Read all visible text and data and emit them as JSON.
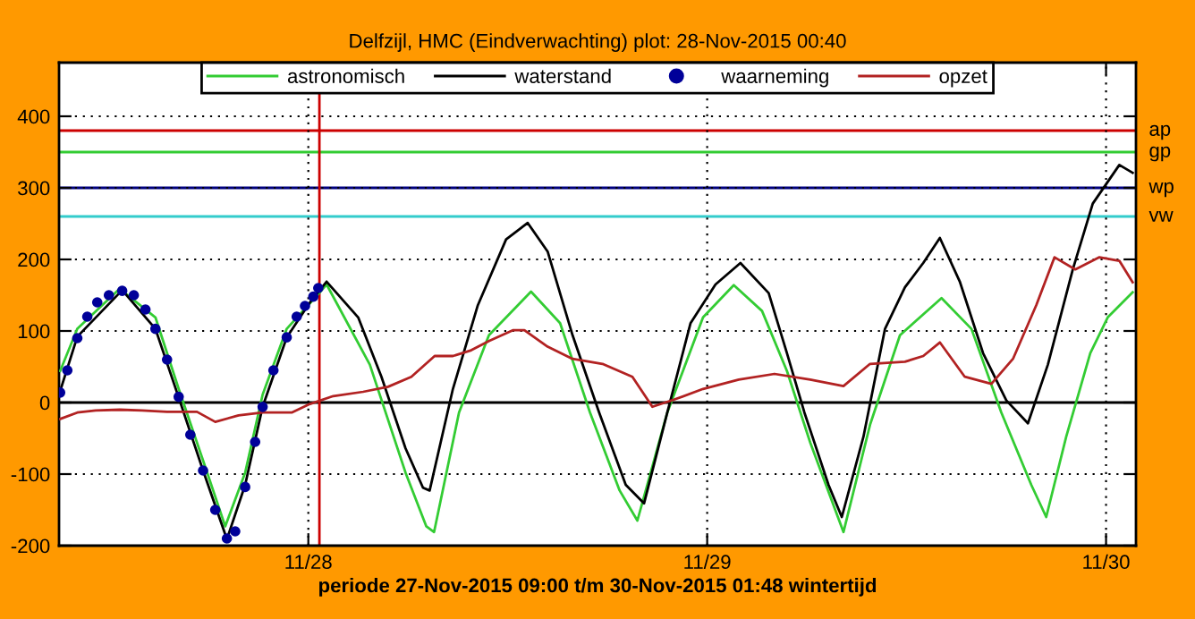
{
  "chart_data": {
    "type": "line",
    "title": "Delfzijl, HMC (Eindverwachting) plot: 28-Nov-2015 00:40",
    "xlabel": "periode 27-Nov-2015 09:00 t/m 30-Nov-2015 01:48 wintertijd",
    "xlim": [
      "2015-11-27T09:00",
      "2015-11-30T01:48"
    ],
    "xticks": [
      {
        "value": "2015-11-28",
        "label": "11/28"
      },
      {
        "value": "2015-11-29",
        "label": "11/29"
      },
      {
        "value": "2015-11-30",
        "label": "11/30"
      }
    ],
    "ylim": [
      -200,
      475
    ],
    "yticks": [
      -200,
      -100,
      0,
      100,
      200,
      300,
      400
    ],
    "grid": true,
    "legend": "top",
    "series": [
      {
        "name": "astronomisch",
        "color": "#33cc33",
        "x": [
          "2015-11-27T09:04",
          "2015-11-27T10:06",
          "2015-11-27T12:39",
          "2015-11-27T14:48",
          "2015-11-27T16:12",
          "2015-11-27T17:40",
          "2015-11-27T19:00",
          "2015-11-27T20:12",
          "2015-11-27T21:15",
          "2015-11-27T22:42",
          "2015-11-28T00:30",
          "2015-11-28T01:06",
          "2015-11-28T03:42",
          "2015-11-28T05:51",
          "2015-11-28T07:06",
          "2015-11-28T07:34",
          "2015-11-28T09:04",
          "2015-11-28T10:52",
          "2015-11-28T13:24",
          "2015-11-28T15:09",
          "2015-11-28T16:57",
          "2015-11-28T18:44",
          "2015-11-28T19:48",
          "2015-11-28T21:36",
          "2015-11-28T23:45",
          "2015-11-29T01:36",
          "2015-11-29T03:18",
          "2015-11-29T04:48",
          "2015-11-29T06:12",
          "2015-11-29T08:12",
          "2015-11-29T09:48",
          "2015-11-29T11:36",
          "2015-11-29T14:06",
          "2015-11-29T15:54",
          "2015-11-29T17:42",
          "2015-11-29T19:30",
          "2015-11-29T20:24",
          "2015-11-29T21:36",
          "2015-11-29T23:03",
          "2015-11-30T00:06",
          "2015-11-30T01:36"
        ],
        "values": [
          44,
          103,
          159,
          119,
          19,
          -81,
          -173,
          -98,
          11,
          103,
          149,
          165,
          53,
          -98,
          -173,
          -181,
          -14,
          94,
          155,
          111,
          -14,
          -123,
          -165,
          -14,
          119,
          164,
          128,
          44,
          -56,
          -181,
          -31,
          94,
          146,
          103,
          -14,
          -115,
          -160,
          -48,
          69,
          119,
          154
        ]
      },
      {
        "name": "waterstand",
        "color": "#000000",
        "x": [
          "2015-11-27T09:04",
          "2015-11-27T10:06",
          "2015-11-27T12:48",
          "2015-11-27T14:48",
          "2015-11-27T16:12",
          "2015-11-27T17:40",
          "2015-11-27T19:06",
          "2015-11-27T20:12",
          "2015-11-27T21:15",
          "2015-11-27T22:42",
          "2015-11-28T00:06",
          "2015-11-28T01:06",
          "2015-11-28T03:00",
          "2015-11-28T04:24",
          "2015-11-28T05:51",
          "2015-11-28T06:54",
          "2015-11-28T07:18",
          "2015-11-28T08:42",
          "2015-11-28T10:12",
          "2015-11-28T11:54",
          "2015-11-28T13:12",
          "2015-11-28T14:24",
          "2015-11-28T15:54",
          "2015-11-28T17:30",
          "2015-11-28T19:06",
          "2015-11-28T20:12",
          "2015-11-28T21:36",
          "2015-11-28T23:00",
          "2015-11-29T00:30",
          "2015-11-29T02:00",
          "2015-11-29T03:42",
          "2015-11-29T04:48",
          "2015-11-29T05:51",
          "2015-11-29T07:18",
          "2015-11-29T08:06",
          "2015-11-29T09:24",
          "2015-11-29T10:42",
          "2015-11-29T11:54",
          "2015-11-29T13:00",
          "2015-11-29T14:00",
          "2015-11-29T15:12",
          "2015-11-29T16:36",
          "2015-11-29T18:00",
          "2015-11-29T19:18",
          "2015-11-29T20:30",
          "2015-11-29T22:00",
          "2015-11-29T23:12",
          "2015-11-30T00:48",
          "2015-11-30T01:36"
        ],
        "values": [
          16,
          92,
          157,
          103,
          7,
          -95,
          -191,
          -115,
          -6,
          91,
          140,
          169,
          119,
          36,
          -64,
          -119,
          -123,
          19,
          136,
          228,
          251,
          211,
          94,
          -14,
          -115,
          -141,
          -14,
          111,
          165,
          195,
          153,
          69,
          -14,
          -115,
          -160,
          -48,
          103,
          161,
          195,
          230,
          169,
          69,
          3,
          -29,
          53,
          186,
          278,
          332,
          321
        ]
      },
      {
        "name": "waarneming",
        "type": "scatter",
        "marker": "circle",
        "color": "#000099",
        "x": [
          "2015-11-27T09:04",
          "2015-11-27T09:30",
          "2015-11-27T10:06",
          "2015-11-27T10:42",
          "2015-11-27T11:18",
          "2015-11-27T12:00",
          "2015-11-27T12:48",
          "2015-11-27T13:30",
          "2015-11-27T14:12",
          "2015-11-27T14:48",
          "2015-11-27T15:30",
          "2015-11-27T16:12",
          "2015-11-27T16:54",
          "2015-11-27T17:40",
          "2015-11-27T18:24",
          "2015-11-27T19:06",
          "2015-11-27T19:36",
          "2015-11-27T20:12",
          "2015-11-27T20:48",
          "2015-11-27T21:15",
          "2015-11-27T21:54",
          "2015-11-27T22:42",
          "2015-11-27T23:18",
          "2015-11-27T23:48",
          "2015-11-28T00:18",
          "2015-11-28T00:36"
        ],
        "values": [
          14,
          45,
          90,
          120,
          140,
          150,
          156,
          150,
          130,
          103,
          60,
          8,
          -45,
          -95,
          -150,
          -190,
          -180,
          -118,
          -55,
          -6,
          45,
          91,
          120,
          135,
          148,
          160
        ]
      },
      {
        "name": "opzet",
        "color": "#b22222",
        "x": [
          "2015-11-27T09:04",
          "2015-11-27T10:06",
          "2015-11-27T11:12",
          "2015-11-27T12:39",
          "2015-11-27T14:00",
          "2015-11-27T15:30",
          "2015-11-27T17:18",
          "2015-11-27T18:24",
          "2015-11-27T19:48",
          "2015-11-27T21:15",
          "2015-11-27T23:00",
          "2015-11-28T00:06",
          "2015-11-28T01:30",
          "2015-11-28T03:18",
          "2015-11-28T04:48",
          "2015-11-28T06:12",
          "2015-11-28T07:36",
          "2015-11-28T08:42",
          "2015-11-28T09:48",
          "2015-11-28T10:52",
          "2015-11-28T12:18",
          "2015-11-28T13:00",
          "2015-11-28T14:24",
          "2015-11-28T15:54",
          "2015-11-28T17:42",
          "2015-11-28T19:30",
          "2015-11-28T20:42",
          "2015-11-28T22:00",
          "2015-11-28T23:45",
          "2015-11-29T01:54",
          "2015-11-29T04:03",
          "2015-11-29T06:12",
          "2015-11-29T08:12",
          "2015-11-29T09:48",
          "2015-11-29T11:54",
          "2015-11-29T13:00",
          "2015-11-29T14:00",
          "2015-11-29T15:30",
          "2015-11-29T17:06",
          "2015-11-29T18:24",
          "2015-11-29T19:48",
          "2015-11-29T20:54",
          "2015-11-29T22:09",
          "2015-11-29T23:36",
          "2015-11-30T00:48",
          "2015-11-30T01:36"
        ],
        "values": [
          -23,
          -14,
          -11,
          -10,
          -11,
          -13,
          -13,
          -27,
          -18,
          -14,
          -14,
          -2,
          9,
          15,
          22,
          36,
          65,
          65,
          73,
          86,
          101,
          101,
          78,
          61,
          54,
          36,
          -6,
          4,
          19,
          32,
          40,
          32,
          23,
          54,
          57,
          65,
          84,
          36,
          26,
          61,
          136,
          203,
          186,
          203,
          198,
          168
        ]
      }
    ],
    "ref_lines": [
      {
        "axis": "y",
        "value": 380,
        "label": "ap",
        "color": "#cc0000"
      },
      {
        "axis": "y",
        "value": 350,
        "label": "gp",
        "color": "#33cc33"
      },
      {
        "axis": "y",
        "value": 300,
        "label": "wp",
        "color": "#000080"
      },
      {
        "axis": "y",
        "value": 260,
        "label": "vw",
        "color": "#33cccc"
      },
      {
        "axis": "y",
        "value": 0,
        "color": "#000000"
      },
      {
        "axis": "x",
        "value": "2015-11-28T00:40",
        "color": "#cc0000"
      }
    ]
  }
}
